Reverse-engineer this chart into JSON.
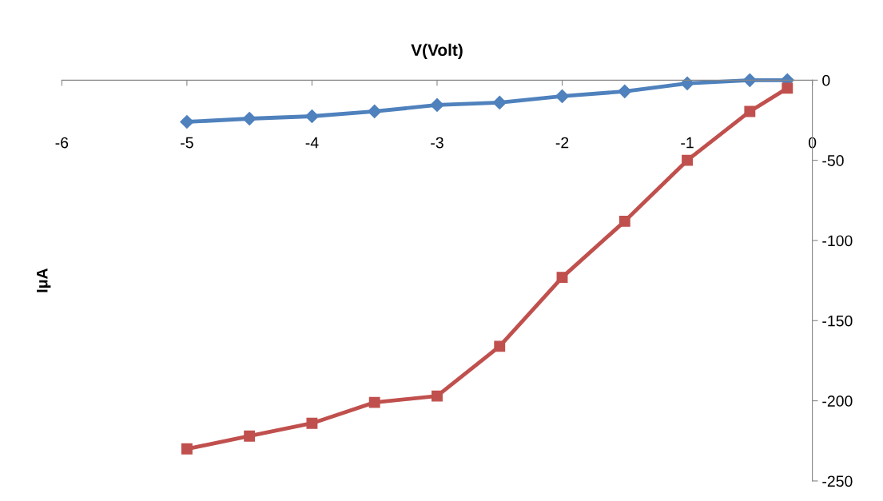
{
  "chart_data": {
    "type": "line",
    "xlabel": "V(Volt)",
    "ylabel": "IμA",
    "xlim": [
      -6,
      0
    ],
    "xticks": [
      -6,
      -5,
      -4,
      -3,
      -2,
      -1,
      0
    ],
    "ylim": [
      -250,
      0
    ],
    "yticks": [
      -250,
      -200,
      -150,
      -100,
      -50,
      0
    ],
    "grid": false,
    "line_style": "solid",
    "series": [
      {
        "color": "#4f81bd",
        "marker": "diamond",
        "x": [
          -5,
          -4.5,
          -4,
          -3.5,
          -3,
          -2.5,
          -2,
          -1.5,
          -1,
          -0.5,
          -0.2
        ],
        "values": [
          -26,
          -24,
          -22.5,
          -19.5,
          -15.5,
          -14,
          -10,
          -7,
          -2,
          0,
          0
        ]
      },
      {
        "color": "#c0504d",
        "marker": "square",
        "x": [
          -5,
          -4.5,
          -4,
          -3.5,
          -3,
          -2.5,
          -2,
          -1.5,
          -1,
          -0.5,
          -0.2
        ],
        "values": [
          -230,
          -222,
          -214,
          -201,
          -197,
          -166,
          -123,
          -88,
          -50,
          -19.5,
          -5
        ]
      }
    ]
  }
}
